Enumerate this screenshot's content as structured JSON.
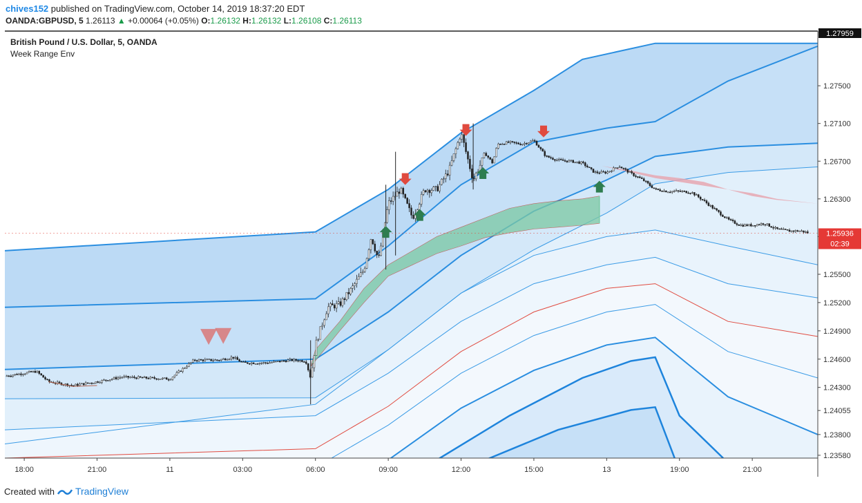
{
  "header": {
    "user": "chives152",
    "published_text": " published on TradingView.com, October 14, 2019 18:37:20 EDT",
    "symbol": "OANDA:GBPUSD, 5",
    "last": "1.26113",
    "change": "+0.00064 (+0.05%)",
    "o_label": "O:",
    "o_value": "1.26132",
    "h_label": "H:",
    "h_value": "1.26132",
    "l_label": "L:",
    "l_value": "1.26108",
    "c_label": "C:",
    "c_value": "1.26113"
  },
  "legend": {
    "title": "British Pound / U.S. Dollar, 5, OANDA",
    "indicator": "Week Range Env"
  },
  "footer": {
    "created_with": "Created with",
    "brand": "TradingView"
  },
  "chart_data": {
    "type": "candlestick",
    "y_ticks": [
      "1.27500",
      "1.27100",
      "1.26700",
      "1.26300",
      "1.25900",
      "1.25500",
      "1.25200",
      "1.24900",
      "1.24600",
      "1.24300",
      "1.24055",
      "1.23800",
      "1.23580"
    ],
    "y_tick_values": [
      1.275,
      1.271,
      1.267,
      1.263,
      1.259,
      1.255,
      1.252,
      1.249,
      1.246,
      1.243,
      1.24055,
      1.238,
      1.2358
    ],
    "ylim": [
      1.2355,
      1.2808
    ],
    "top_label": "1.27959",
    "current_price": "1.25936",
    "countdown": "02:39",
    "x_ticks": [
      "18:00",
      "21:00",
      "11",
      "03:00",
      "06:00",
      "09:00",
      "12:00",
      "15:00",
      "13",
      "19:00",
      "21:00"
    ],
    "x_tick_hours": [
      0,
      3,
      6,
      9,
      12,
      15,
      18,
      21,
      24,
      27,
      30
    ],
    "xlim_hours": [
      -0.8,
      32.7
    ],
    "price_path": [
      [
        -0.8,
        1.2442
      ],
      [
        0.5,
        1.2447
      ],
      [
        1,
        1.2436
      ],
      [
        2,
        1.2432
      ],
      [
        3,
        1.2436
      ],
      [
        4,
        1.2441
      ],
      [
        5,
        1.244
      ],
      [
        6,
        1.2439
      ],
      [
        7,
        1.2459
      ],
      [
        8,
        1.2459
      ],
      [
        8.6,
        1.2462
      ],
      [
        9,
        1.2456
      ],
      [
        10,
        1.2456
      ],
      [
        11,
        1.2459
      ],
      [
        11.6,
        1.2458
      ],
      [
        11.8,
        1.244
      ],
      [
        12,
        1.2475
      ],
      [
        12.5,
        1.2515
      ],
      [
        13,
        1.2518
      ],
      [
        13.5,
        1.2535
      ],
      [
        14,
        1.2555
      ],
      [
        14.3,
        1.259
      ],
      [
        14.6,
        1.2565
      ],
      [
        15,
        1.2625
      ],
      [
        15.5,
        1.264
      ],
      [
        16,
        1.261
      ],
      [
        16.5,
        1.264
      ],
      [
        17,
        1.264
      ],
      [
        17.5,
        1.266
      ],
      [
        18,
        1.27
      ],
      [
        18.5,
        1.265
      ],
      [
        19,
        1.2678
      ],
      [
        19.3,
        1.2668
      ],
      [
        19.5,
        1.2688
      ],
      [
        20,
        1.269
      ],
      [
        20.5,
        1.2688
      ],
      [
        21,
        1.2692
      ],
      [
        21.5,
        1.2675
      ],
      [
        22,
        1.2671
      ],
      [
        22.5,
        1.267
      ],
      [
        23,
        1.2668
      ],
      [
        23.5,
        1.2658
      ],
      [
        24,
        1.2658
      ],
      [
        24.5,
        1.2665
      ],
      [
        25,
        1.2657
      ],
      [
        25.5,
        1.265
      ],
      [
        26,
        1.264
      ],
      [
        26.5,
        1.2638
      ],
      [
        27,
        1.2638
      ],
      [
        27.5,
        1.2637
      ],
      [
        28,
        1.2628
      ],
      [
        28.5,
        1.2618
      ],
      [
        29,
        1.2608
      ],
      [
        29.5,
        1.2602
      ],
      [
        30,
        1.2602
      ],
      [
        30.5,
        1.2604
      ],
      [
        31,
        1.2598
      ],
      [
        31.5,
        1.2596
      ],
      [
        32,
        1.2596
      ],
      [
        32.3,
        1.2594
      ]
    ],
    "wick_spikes": [
      [
        15.3,
        1.268,
        1.257
      ],
      [
        18.5,
        1.271,
        1.264
      ],
      [
        11.8,
        1.248,
        1.2412
      ],
      [
        14.9,
        1.2645,
        1.2555
      ]
    ],
    "envelope_bands": [
      {
        "name": "upper-outer",
        "points": [
          [
            -0.8,
            1.2575
          ],
          [
            12,
            1.2595
          ],
          [
            15,
            1.264
          ],
          [
            18,
            1.27
          ],
          [
            21,
            1.2745
          ],
          [
            23,
            1.2778
          ],
          [
            26,
            1.2795
          ],
          [
            32.7,
            1.2795
          ]
        ]
      },
      {
        "name": "upper-mid",
        "points": [
          [
            -0.8,
            1.2515
          ],
          [
            12,
            1.2524
          ],
          [
            15,
            1.258
          ],
          [
            18,
            1.2645
          ],
          [
            21,
            1.269
          ],
          [
            24,
            1.2705
          ],
          [
            26,
            1.2712
          ],
          [
            29,
            1.2755
          ],
          [
            32.7,
            1.2792
          ]
        ]
      },
      {
        "name": "upper-inner",
        "points": [
          [
            -0.8,
            1.2449
          ],
          [
            12,
            1.246
          ],
          [
            15,
            1.251
          ],
          [
            18,
            1.257
          ],
          [
            21,
            1.2617
          ],
          [
            24,
            1.265
          ],
          [
            26,
            1.2675
          ],
          [
            29,
            1.2685
          ],
          [
            32.7,
            1.2689
          ]
        ]
      },
      {
        "name": "mid-upper",
        "points": [
          [
            -0.8,
            1.2418
          ],
          [
            12,
            1.2419
          ],
          [
            15,
            1.247
          ],
          [
            18,
            1.253
          ],
          [
            21,
            1.2576
          ],
          [
            24,
            1.2615
          ],
          [
            26,
            1.2646
          ],
          [
            29,
            1.2658
          ],
          [
            32.7,
            1.2664
          ]
        ]
      },
      {
        "name": "base",
        "points": [
          [
            -0.8,
            1.237
          ],
          [
            12,
            1.2412
          ],
          [
            15,
            1.247
          ],
          [
            18,
            1.253
          ],
          [
            21,
            1.257
          ],
          [
            24,
            1.259
          ],
          [
            26,
            1.2597
          ],
          [
            29,
            1.258
          ],
          [
            32.7,
            1.256
          ]
        ]
      },
      {
        "name": "mid-lower",
        "points": [
          [
            -0.8,
            1.2385
          ],
          [
            12,
            1.24
          ],
          [
            15,
            1.2445
          ],
          [
            18,
            1.25
          ],
          [
            21,
            1.254
          ],
          [
            24,
            1.256
          ],
          [
            26,
            1.2568
          ],
          [
            29,
            1.254
          ],
          [
            32.7,
            1.2525
          ]
        ]
      },
      {
        "name": "red-line",
        "points": [
          [
            -0.8,
            1.2355
          ],
          [
            12,
            1.2365
          ],
          [
            15,
            1.241
          ],
          [
            18,
            1.2468
          ],
          [
            21,
            1.251
          ],
          [
            24,
            1.2535
          ],
          [
            26,
            1.254
          ],
          [
            29,
            1.25
          ],
          [
            32.7,
            1.2484
          ]
        ]
      },
      {
        "name": "lower-1",
        "points": [
          [
            -0.8,
            1.2337
          ],
          [
            12,
            1.2345
          ],
          [
            15,
            1.239
          ],
          [
            18,
            1.2445
          ],
          [
            21,
            1.2485
          ],
          [
            24,
            1.251
          ],
          [
            26,
            1.2518
          ],
          [
            29,
            1.2468
          ],
          [
            32.7,
            1.244
          ]
        ]
      },
      {
        "name": "lower-2",
        "points": [
          [
            15,
            1.2353
          ],
          [
            18,
            1.2408
          ],
          [
            21,
            1.2448
          ],
          [
            24,
            1.2475
          ],
          [
            26,
            1.2483
          ],
          [
            29,
            1.242
          ],
          [
            32.7,
            1.238
          ]
        ]
      },
      {
        "name": "lower-3",
        "points": [
          [
            17,
            1.2353
          ],
          [
            20,
            1.24
          ],
          [
            23,
            1.244
          ],
          [
            25,
            1.2458
          ],
          [
            26,
            1.2462
          ],
          [
            27,
            1.24
          ],
          [
            28.8,
            1.2355
          ]
        ]
      },
      {
        "name": "lower-4",
        "points": [
          [
            19,
            1.2353
          ],
          [
            22,
            1.2385
          ],
          [
            25,
            1.2406
          ],
          [
            26,
            1.2409
          ],
          [
            26.8,
            1.2355
          ]
        ]
      }
    ],
    "cloud": {
      "points": [
        [
          11.8,
          1.2452
        ],
        [
          12,
          1.247
        ],
        [
          13,
          1.25
        ],
        [
          14,
          1.2535
        ],
        [
          15,
          1.256
        ],
        [
          16,
          1.2575
        ],
        [
          17,
          1.259
        ],
        [
          18,
          1.26
        ],
        [
          19,
          1.261
        ],
        [
          20,
          1.262
        ],
        [
          21,
          1.2625
        ],
        [
          22,
          1.2628
        ],
        [
          23,
          1.263
        ],
        [
          23.7,
          1.2633
        ]
      ],
      "lower": [
        [
          11.8,
          1.2452
        ],
        [
          13,
          1.249
        ],
        [
          14,
          1.252
        ],
        [
          15,
          1.2548
        ],
        [
          16,
          1.256
        ],
        [
          17,
          1.2572
        ],
        [
          18,
          1.258
        ],
        [
          19,
          1.2589
        ],
        [
          20,
          1.2594
        ],
        [
          21,
          1.2598
        ],
        [
          22,
          1.26
        ],
        [
          23,
          1.2602
        ],
        [
          23.7,
          1.2604
        ]
      ]
    },
    "sell_signals_hours": [
      7.6,
      8.2,
      15.7,
      18.2,
      21.4
    ],
    "buy_signals_hours": [
      14.9,
      16.3,
      18.9,
      23.7
    ]
  }
}
